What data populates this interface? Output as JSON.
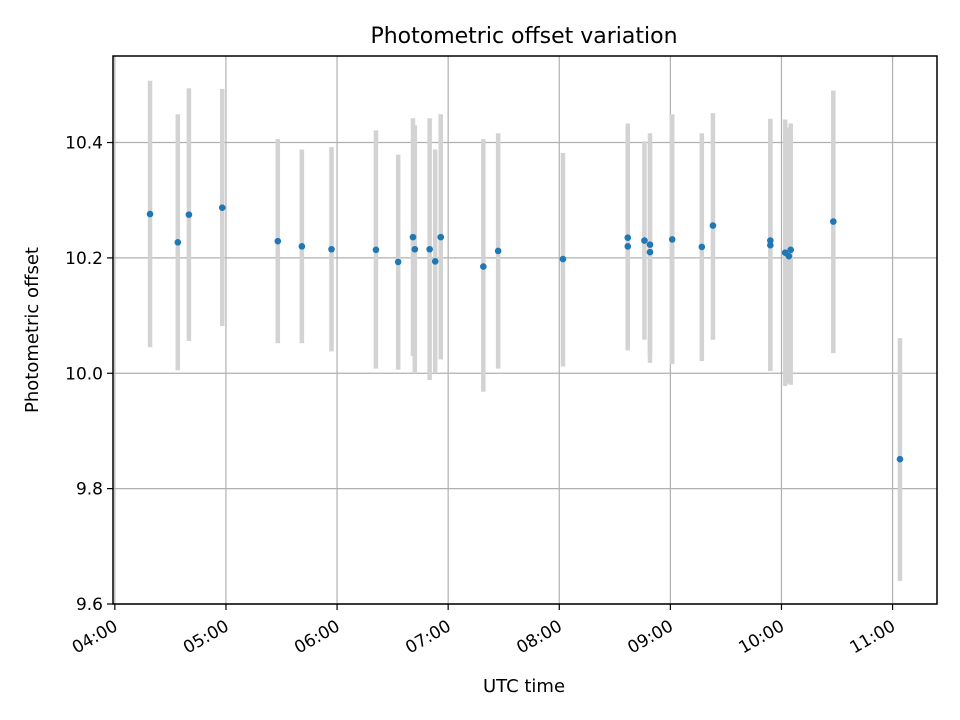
{
  "chart_data": {
    "type": "scatter",
    "title": "Photometric offset variation",
    "xlabel": "UTC time",
    "ylabel": "Photometric offset",
    "xlim": [
      "03:59",
      "11:24"
    ],
    "ylim": [
      9.6,
      10.55
    ],
    "xticks": [
      "04:00",
      "05:00",
      "06:00",
      "07:00",
      "08:00",
      "09:00",
      "10:00",
      "11:00"
    ],
    "yticks": [
      9.6,
      9.8,
      10.0,
      10.2,
      10.4
    ],
    "grid": true,
    "colors": {
      "point": "#1f77b4",
      "errorbar": "#d3d3d3",
      "grid": "#b0b0b0"
    },
    "points": [
      {
        "x": "04:19",
        "y": 10.276,
        "ylow": 10.045,
        "yhigh": 10.507
      },
      {
        "x": "04:34",
        "y": 10.227,
        "ylow": 10.005,
        "yhigh": 10.449
      },
      {
        "x": "04:40",
        "y": 10.275,
        "ylow": 10.056,
        "yhigh": 10.494
      },
      {
        "x": "04:58",
        "y": 10.287,
        "ylow": 10.082,
        "yhigh": 10.493
      },
      {
        "x": "05:28",
        "y": 10.229,
        "ylow": 10.052,
        "yhigh": 10.406
      },
      {
        "x": "05:41",
        "y": 10.22,
        "ylow": 10.052,
        "yhigh": 10.388
      },
      {
        "x": "05:57",
        "y": 10.215,
        "ylow": 10.038,
        "yhigh": 10.392
      },
      {
        "x": "06:21",
        "y": 10.214,
        "ylow": 10.008,
        "yhigh": 10.421
      },
      {
        "x": "06:33",
        "y": 10.193,
        "ylow": 10.006,
        "yhigh": 10.379
      },
      {
        "x": "06:41",
        "y": 10.236,
        "ylow": 10.03,
        "yhigh": 10.442
      },
      {
        "x": "06:42",
        "y": 10.215,
        "ylow": 10.0,
        "yhigh": 10.43
      },
      {
        "x": "06:50",
        "y": 10.215,
        "ylow": 9.988,
        "yhigh": 10.442
      },
      {
        "x": "06:53",
        "y": 10.194,
        "ylow": 10.0,
        "yhigh": 10.388
      },
      {
        "x": "06:56",
        "y": 10.236,
        "ylow": 10.024,
        "yhigh": 10.449
      },
      {
        "x": "07:19",
        "y": 10.185,
        "ylow": 9.968,
        "yhigh": 10.406
      },
      {
        "x": "07:27",
        "y": 10.212,
        "ylow": 10.008,
        "yhigh": 10.416
      },
      {
        "x": "08:02",
        "y": 10.198,
        "ylow": 10.012,
        "yhigh": 10.382
      },
      {
        "x": "08:37",
        "y": 10.235,
        "ylow": 10.04,
        "yhigh": 10.433
      },
      {
        "x": "08:37",
        "y": 10.22,
        "ylow": 10.04,
        "yhigh": 10.433
      },
      {
        "x": "08:46",
        "y": 10.23,
        "ylow": 10.058,
        "yhigh": 10.402
      },
      {
        "x": "08:49",
        "y": 10.223,
        "ylow": 10.03,
        "yhigh": 10.416
      },
      {
        "x": "08:49",
        "y": 10.21,
        "ylow": 10.018,
        "yhigh": 10.402
      },
      {
        "x": "09:01",
        "y": 10.232,
        "ylow": 10.016,
        "yhigh": 10.449
      },
      {
        "x": "09:17",
        "y": 10.219,
        "ylow": 10.021,
        "yhigh": 10.416
      },
      {
        "x": "09:23",
        "y": 10.256,
        "ylow": 10.058,
        "yhigh": 10.451
      },
      {
        "x": "09:54",
        "y": 10.23,
        "ylow": 10.004,
        "yhigh": 10.441
      },
      {
        "x": "09:54",
        "y": 10.222,
        "ylow": 10.004,
        "yhigh": 10.441
      },
      {
        "x": "10:02",
        "y": 10.209,
        "ylow": 9.978,
        "yhigh": 10.44
      },
      {
        "x": "10:04",
        "y": 10.203,
        "ylow": 9.982,
        "yhigh": 10.426
      },
      {
        "x": "10:05",
        "y": 10.214,
        "ylow": 9.98,
        "yhigh": 10.433
      },
      {
        "x": "10:28",
        "y": 10.263,
        "ylow": 10.035,
        "yhigh": 10.49
      },
      {
        "x": "11:04",
        "y": 9.851,
        "ylow": 9.64,
        "yhigh": 10.061
      }
    ]
  }
}
